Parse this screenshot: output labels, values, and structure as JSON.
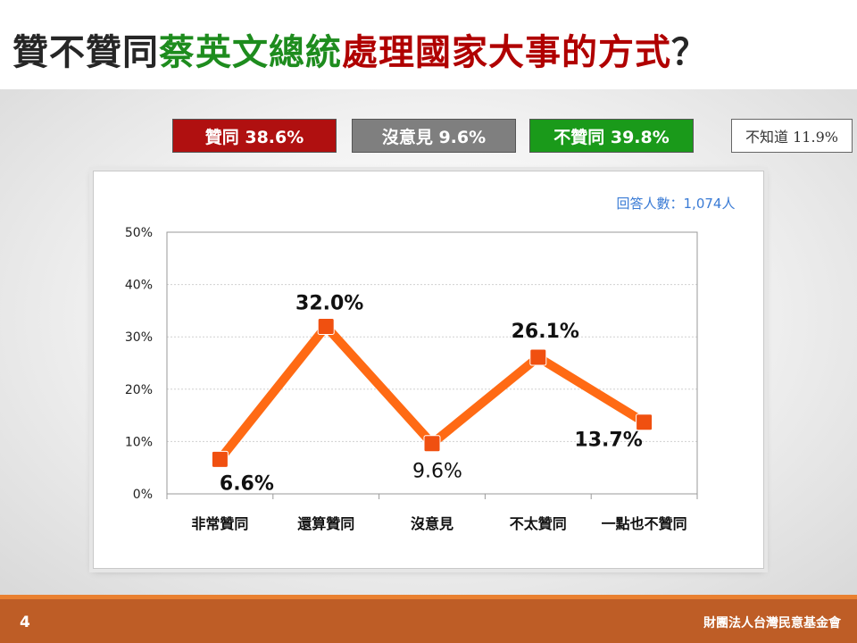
{
  "title": {
    "part1": "贊不贊同",
    "part2": "蔡英文總統",
    "part3": "處理國家大事的方式",
    "part4": "？"
  },
  "summary": {
    "agree": "贊同 38.6%",
    "no_opinion": "沒意見 9.6%",
    "disagree": "不贊同 39.8%",
    "dont_know": "不知道 11.9%"
  },
  "colors": {
    "agree": "#b01010",
    "no_opinion": "#7f7f7f",
    "disagree": "#1a9a1a",
    "line": "#ff6a14",
    "marker": "#f05010",
    "footer": "#be5d26"
  },
  "chart_data": {
    "type": "line",
    "title": "",
    "annotation": "回答人數：1,074人",
    "categories": [
      "非常贊同",
      "還算贊同",
      "沒意見",
      "不太贊同",
      "一點也不贊同"
    ],
    "values": [
      6.6,
      32.0,
      9.6,
      26.1,
      13.7
    ],
    "value_labels": [
      "6.6%",
      "32.0%",
      "9.6%",
      "26.1%",
      "13.7%"
    ],
    "ylim": [
      0,
      50
    ],
    "yticks": [
      0,
      10,
      20,
      30,
      40,
      50
    ],
    "ytick_labels": [
      "0%",
      "10%",
      "20%",
      "30%",
      "40%",
      "50%"
    ],
    "grid": true,
    "legend": "none"
  },
  "footer": {
    "page_number": "4",
    "organization": "財團法人台灣民意基金會"
  }
}
